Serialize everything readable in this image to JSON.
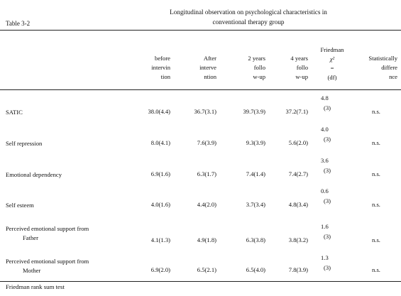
{
  "title": [
    "Longitudinal observation on psychological characteristics in",
    "conventional therapy group"
  ],
  "table_label": "Table 3-2",
  "headers": {
    "before": [
      "before",
      "intervin",
      "tion"
    ],
    "after": [
      "After",
      "interve",
      "ntion"
    ],
    "y2": [
      "2 years",
      "follo",
      "w-up"
    ],
    "y4": [
      "4 years",
      "follo",
      "w-up"
    ],
    "friedman": [
      "Friedman",
      "χ²",
      "=",
      "(df)"
    ],
    "stat": [
      "Statistically",
      "differe",
      "nce"
    ]
  },
  "rows": [
    {
      "label": [
        "SATIC"
      ],
      "before": "38.0(4.4)",
      "after": "36.7(3.1)",
      "y2": "39.7(3.9)",
      "y4": "37.2(7.1)",
      "chi": "4.8",
      "df": "(3)",
      "stat": "n.s."
    },
    {
      "label": [
        "Self repression"
      ],
      "before": "8.0(4.1)",
      "after": "7.6(3.9)",
      "y2": "9.3(3.9)",
      "y4": "5.6(2.0)",
      "chi": "4.0",
      "df": "(3)",
      "stat": "n.s."
    },
    {
      "label": [
        "Emotional dependency"
      ],
      "before": "6.9(1.6)",
      "after": "6.3(1.7)",
      "y2": "7.4(1.4)",
      "y4": "7.4(2.7)",
      "chi": "3.6",
      "df": "(3)",
      "stat": "n.s."
    },
    {
      "label": [
        "Self esteem"
      ],
      "before": "4.0(1.6)",
      "after": "4.4(2.0)",
      "y2": "3.7(3.4)",
      "y4": "4.8(3.4)",
      "chi": "0.6",
      "df": "(3)",
      "stat": "n.s."
    },
    {
      "label": [
        "Perceived emotional support from",
        "Father"
      ],
      "before": "4.1(1.3)",
      "after": "4.9(1.8)",
      "y2": "6.3(3.8)",
      "y4": "3.8(3.2)",
      "chi": "1.6",
      "df": "(3)",
      "stat": "n.s."
    },
    {
      "label": [
        "Perceived emotional support from",
        "Mother"
      ],
      "before": "6.9(2.0)",
      "after": "6.5(2.1)",
      "y2": "6.5(4.0)",
      "y4": "7.8(3.9)",
      "chi": "1.3",
      "df": "(3)",
      "stat": "n.s."
    }
  ],
  "footnote": "Friedman rank sum test"
}
